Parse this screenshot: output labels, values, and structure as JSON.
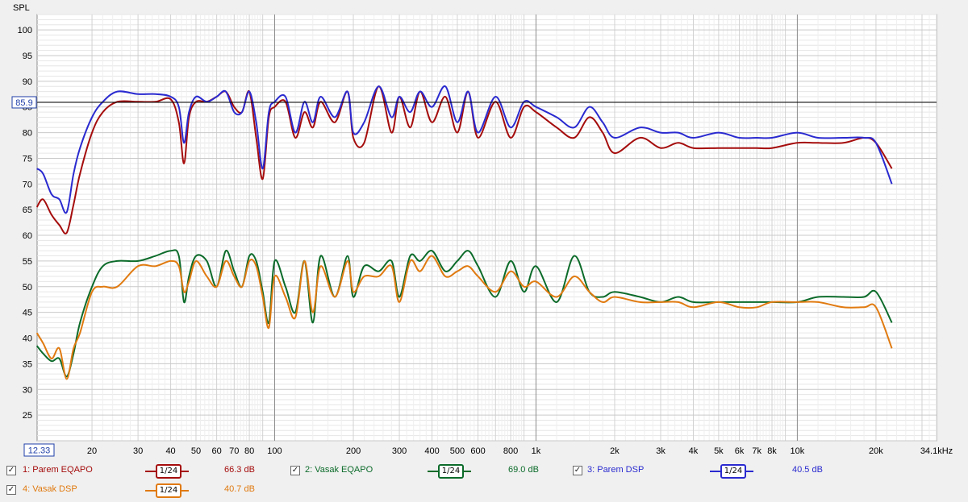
{
  "chart_data": {
    "type": "line",
    "ylabel": "SPL",
    "xunit_label": "34.1kHz",
    "ylim": [
      20,
      103
    ],
    "xlim_hz": [
      12.33,
      34100
    ],
    "x_scale": "log",
    "y_ticks": [
      25,
      30,
      35,
      40,
      45,
      50,
      55,
      60,
      65,
      70,
      75,
      80,
      85,
      90,
      95,
      100
    ],
    "x_ticks": [
      {
        "hz": 20,
        "label": "20"
      },
      {
        "hz": 30,
        "label": "30"
      },
      {
        "hz": 40,
        "label": "40"
      },
      {
        "hz": 50,
        "label": "50"
      },
      {
        "hz": 60,
        "label": "60"
      },
      {
        "hz": 70,
        "label": "70"
      },
      {
        "hz": 80,
        "label": "80"
      },
      {
        "hz": 100,
        "label": "100"
      },
      {
        "hz": 200,
        "label": "200"
      },
      {
        "hz": 300,
        "label": "300"
      },
      {
        "hz": 400,
        "label": "400"
      },
      {
        "hz": 500,
        "label": "500"
      },
      {
        "hz": 600,
        "label": "600"
      },
      {
        "hz": 800,
        "label": "800"
      },
      {
        "hz": 1000,
        "label": "1k"
      },
      {
        "hz": 2000,
        "label": "2k"
      },
      {
        "hz": 3000,
        "label": "3k"
      },
      {
        "hz": 4000,
        "label": "4k"
      },
      {
        "hz": 5000,
        "label": "5k"
      },
      {
        "hz": 6000,
        "label": "6k"
      },
      {
        "hz": 7000,
        "label": "7k"
      },
      {
        "hz": 8000,
        "label": "8k"
      },
      {
        "hz": 10000,
        "label": "10k"
      },
      {
        "hz": 20000,
        "label": "20k"
      }
    ],
    "x_start_label": "12.33",
    "cursor_level": 85.9,
    "cursor_label": "85.9",
    "grid": true,
    "series": [
      {
        "name": "1: Parem EQAPO",
        "color": "#a50c0c",
        "smoothing": "1/24",
        "level": "66.3 dB",
        "x": [
          12.3,
          13,
          14,
          15,
          16,
          17,
          18,
          20,
          22,
          25,
          30,
          35,
          40,
          43,
          45,
          47,
          50,
          55,
          60,
          65,
          70,
          75,
          80,
          85,
          90,
          95,
          100,
          110,
          120,
          130,
          140,
          150,
          170,
          190,
          200,
          220,
          250,
          280,
          300,
          330,
          360,
          400,
          450,
          500,
          550,
          600,
          700,
          800,
          900,
          1000,
          1200,
          1400,
          1600,
          1800,
          2000,
          2500,
          3000,
          3500,
          4000,
          5000,
          6000,
          7000,
          8000,
          10000,
          12000,
          15000,
          18000,
          20000,
          23000
        ],
        "y": [
          65.5,
          67,
          64,
          62,
          60.5,
          66,
          72,
          80,
          84,
          86,
          86,
          86,
          86.5,
          82,
          74,
          83,
          86,
          86,
          87,
          88,
          85,
          84,
          88,
          79,
          71,
          83,
          85,
          86,
          79,
          84,
          81,
          86,
          82,
          88,
          79,
          78,
          89,
          80,
          87,
          81,
          88,
          82,
          87,
          80,
          88,
          79,
          86,
          79,
          85,
          84,
          81,
          79,
          83,
          80,
          76,
          79,
          77,
          78,
          77,
          77,
          77,
          77,
          77,
          78,
          78,
          78,
          79,
          78,
          73
        ]
      },
      {
        "name": "2: Vasak EQAPO",
        "color": "#0c6b2a",
        "smoothing": "1/24",
        "level": "69.0 dB",
        "x": [
          12.3,
          13,
          14,
          15,
          16,
          17,
          18,
          20,
          22,
          25,
          30,
          35,
          40,
          43,
          45,
          47,
          50,
          55,
          60,
          65,
          70,
          75,
          80,
          85,
          90,
          95,
          100,
          110,
          120,
          130,
          140,
          150,
          170,
          190,
          200,
          220,
          250,
          280,
          300,
          330,
          360,
          400,
          450,
          500,
          550,
          600,
          700,
          800,
          900,
          1000,
          1200,
          1400,
          1600,
          1800,
          2000,
          2500,
          3000,
          3500,
          4000,
          5000,
          6000,
          7000,
          8000,
          10000,
          12000,
          15000,
          18000,
          20000,
          23000
        ],
        "y": [
          38.5,
          37,
          35.5,
          36,
          32.5,
          37,
          43,
          50,
          54,
          55,
          55,
          56,
          57,
          56,
          47,
          52,
          56,
          55,
          50,
          57,
          53,
          50,
          56,
          55,
          49,
          43,
          55,
          50,
          45,
          55,
          43,
          56,
          48,
          56,
          48,
          54,
          53,
          55,
          48,
          56,
          55,
          57,
          53,
          55,
          57,
          54,
          48,
          55,
          49,
          54,
          47,
          56,
          49,
          48,
          49,
          48,
          47,
          48,
          47,
          47,
          47,
          47,
          47,
          47,
          48,
          48,
          48,
          49,
          43
        ]
      },
      {
        "name": "3: Parem DSP",
        "color": "#2a2ad0",
        "smoothing": "1/24",
        "level": "40.5 dB",
        "x": [
          12.3,
          13,
          14,
          15,
          16,
          17,
          18,
          20,
          22,
          25,
          30,
          35,
          40,
          43,
          45,
          47,
          50,
          55,
          60,
          65,
          70,
          75,
          80,
          85,
          90,
          95,
          100,
          110,
          120,
          130,
          140,
          150,
          170,
          190,
          200,
          220,
          250,
          280,
          300,
          330,
          360,
          400,
          450,
          500,
          550,
          600,
          700,
          800,
          900,
          1000,
          1200,
          1400,
          1600,
          1800,
          2000,
          2500,
          3000,
          3500,
          4000,
          5000,
          6000,
          7000,
          8000,
          10000,
          12000,
          15000,
          18000,
          20000,
          23000
        ],
        "y": [
          73,
          72,
          68,
          67,
          64.5,
          72,
          77,
          83,
          86,
          88,
          87.5,
          87.5,
          87,
          85,
          78,
          84,
          87,
          86,
          87,
          88,
          84,
          84,
          88,
          82,
          73,
          84,
          86,
          87,
          80,
          86,
          82,
          87,
          83,
          88,
          80,
          82,
          89,
          83,
          87,
          84,
          88,
          85,
          89,
          82,
          88,
          80,
          87,
          81,
          86,
          85,
          83,
          81,
          85,
          82,
          79,
          81,
          80,
          80,
          79,
          80,
          79,
          79,
          79,
          80,
          79,
          79,
          79,
          78,
          70
        ]
      },
      {
        "name": "4: Vasak DSP",
        "color": "#e07a10",
        "smoothing": "1/24",
        "level": "40.7 dB",
        "x": [
          12.3,
          13,
          14,
          15,
          16,
          17,
          18,
          20,
          22,
          25,
          30,
          35,
          40,
          43,
          45,
          47,
          50,
          55,
          60,
          65,
          70,
          75,
          80,
          85,
          90,
          95,
          100,
          110,
          120,
          130,
          140,
          150,
          170,
          190,
          200,
          220,
          250,
          280,
          300,
          330,
          360,
          400,
          450,
          500,
          550,
          600,
          700,
          800,
          900,
          1000,
          1200,
          1400,
          1600,
          1800,
          2000,
          2500,
          3000,
          3500,
          4000,
          5000,
          6000,
          7000,
          8000,
          10000,
          12000,
          15000,
          18000,
          20000,
          23000
        ],
        "y": [
          41,
          39,
          36,
          38,
          32,
          38,
          41,
          49,
          50,
          50,
          54,
          54,
          55,
          54,
          49,
          51,
          55,
          52,
          50,
          55,
          52,
          50,
          55,
          54,
          48,
          42,
          52,
          48,
          44,
          55,
          45,
          54,
          48,
          55,
          49,
          52,
          52,
          54,
          47,
          55,
          53,
          56,
          52,
          53,
          54,
          52,
          49,
          53,
          50,
          51,
          48,
          52,
          49,
          47,
          48,
          47,
          47,
          47,
          46,
          47,
          46,
          46,
          47,
          47,
          47,
          46,
          46,
          46,
          38
        ]
      }
    ]
  },
  "legend_check_glyph": "✓"
}
